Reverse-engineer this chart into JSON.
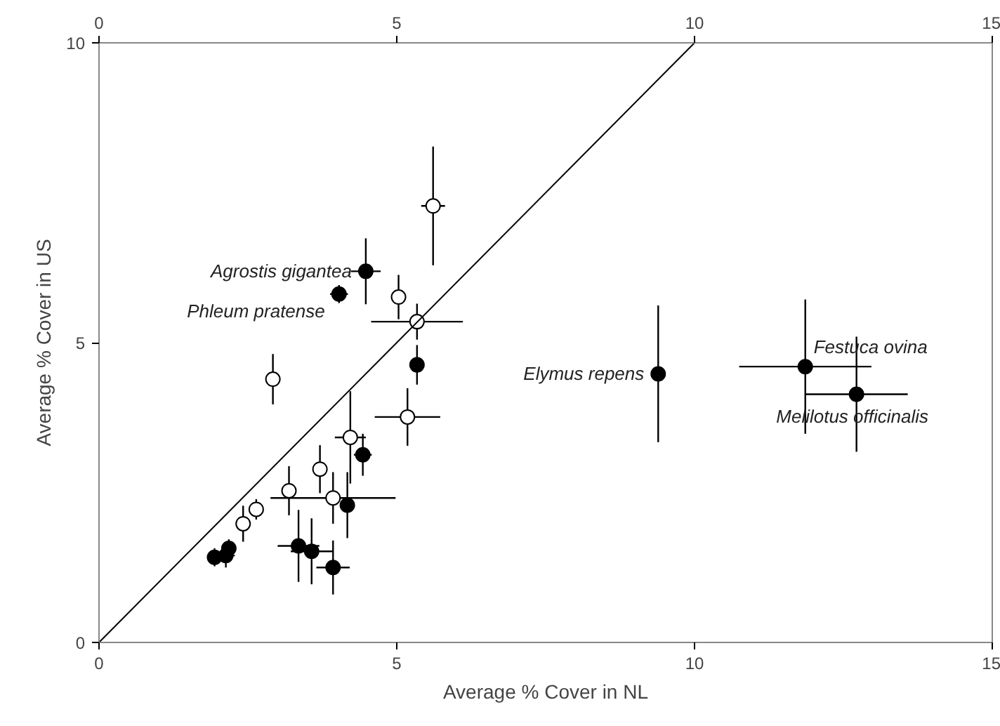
{
  "chart_data": {
    "type": "scatter",
    "xlabel": "Average % Cover in NL",
    "ylabel": "Average % Cover in US",
    "xlim": [
      0,
      15
    ],
    "xticks": [
      0,
      5,
      10,
      15
    ],
    "x2lim": [
      0,
      15
    ],
    "x2ticks": [
      0,
      5,
      10,
      15
    ],
    "ylim": [
      0,
      10
    ],
    "yticks": [
      0,
      5,
      10
    ],
    "grid": false,
    "marker": "circle",
    "series": [
      {
        "color": "#000000",
        "x": [
          4.48,
          4.03,
          5.34,
          4.43,
          4.17,
          3.35,
          3.57,
          3.93,
          1.94,
          2.13,
          2.18,
          9.39,
          11.86,
          12.72
        ],
        "values": [
          6.19,
          5.81,
          4.63,
          3.13,
          2.29,
          1.61,
          1.52,
          1.25,
          1.42,
          1.45,
          1.57,
          4.48,
          4.6,
          4.14
        ],
        "errors": [
          0.55,
          0.15,
          0.33,
          0.35,
          0.55,
          0.6,
          0.55,
          0.45,
          0.15,
          0.2,
          0.15,
          1.14,
          1.12,
          0.96
        ],
        "xerrors": [
          0.25,
          0.15,
          null,
          0.15,
          null,
          0.35,
          0.35,
          0.28,
          null,
          0.15,
          null,
          null,
          1.11,
          0.86
        ]
      },
      {
        "color": "#ffffff",
        "x": [
          5.61,
          5.03,
          5.34,
          2.92,
          5.18,
          4.22,
          3.71,
          3.19,
          3.93,
          2.64,
          2.42
        ],
        "values": [
          7.28,
          5.76,
          5.35,
          4.39,
          3.76,
          3.42,
          2.89,
          2.53,
          2.41,
          2.22,
          1.98
        ],
        "errors": [
          0.99,
          0.37,
          0.3,
          0.42,
          0.48,
          0.77,
          0.4,
          0.41,
          0.43,
          0.17,
          0.3
        ],
        "xerrors": [
          0.2,
          null,
          0.77,
          null,
          0.55,
          0.26,
          null,
          null,
          1.05,
          null,
          null
        ]
      },
      {
        "type": "line",
        "marker": "none",
        "color": "#000000",
        "x": [
          0,
          10
        ],
        "values": [
          0,
          10
        ]
      }
    ],
    "annotations": [
      {
        "text": "Agrostis gigantea",
        "x": 4.48,
        "y": 6.19
      },
      {
        "text": "Phleum pratense",
        "x": 4.03,
        "y": 5.81
      },
      {
        "text": "Elymus repens",
        "x": 9.39,
        "y": 4.48
      },
      {
        "text": "Festuca ovina",
        "x": 11.86,
        "y": 4.6
      },
      {
        "text": "Melilotus officinalis",
        "x": 12.72,
        "y": 4.14
      }
    ]
  }
}
